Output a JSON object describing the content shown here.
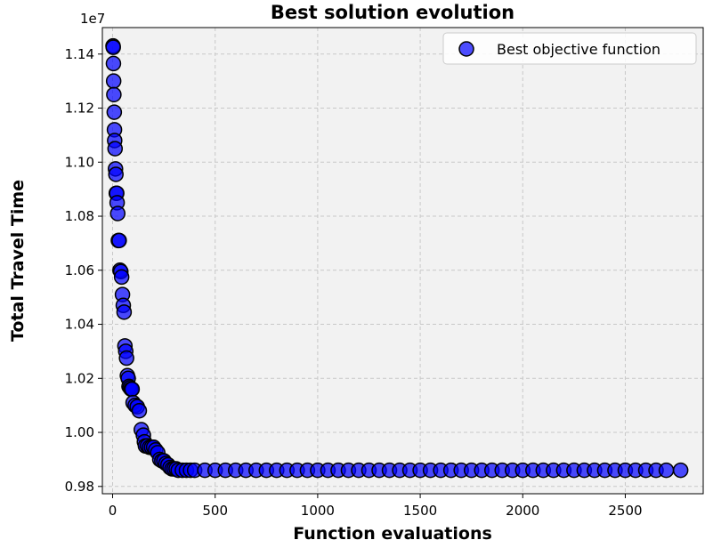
{
  "chart_data": {
    "type": "scatter",
    "title": "Best solution evolution",
    "xlabel": "Function evaluations",
    "ylabel": "Total Travel Time",
    "y_offset_label": "1e7",
    "y_scale_factor": 10000000,
    "xlim": [
      -50,
      2880
    ],
    "ylim": [
      0.9773,
      1.1498
    ],
    "xticks": [
      0,
      500,
      1000,
      1500,
      2000,
      2500
    ],
    "yticks": [
      0.98,
      1.0,
      1.02,
      1.04,
      1.06,
      1.08,
      1.1,
      1.12,
      1.14
    ],
    "ytick_labels": [
      "0.98",
      "1.00",
      "1.02",
      "1.04",
      "1.06",
      "1.08",
      "1.10",
      "1.12",
      "1.14"
    ],
    "grid": true,
    "grid_style": "dashed",
    "legend_position": "top-right",
    "marker_color": "#0000ff",
    "marker_edge_color": "#000000",
    "plot_background": "#f2f2f2",
    "series": [
      {
        "name": "Best objective function",
        "x": [
          2,
          3,
          4,
          5,
          6,
          8,
          9,
          10,
          12,
          14,
          16,
          18,
          20,
          22,
          25,
          28,
          32,
          36,
          40,
          44,
          48,
          52,
          56,
          60,
          64,
          68,
          72,
          76,
          80,
          85,
          90,
          95,
          100,
          110,
          120,
          130,
          140,
          150,
          155,
          160,
          170,
          180,
          190,
          200,
          210,
          220,
          230,
          240,
          250,
          260,
          270,
          280,
          290,
          300,
          310,
          320,
          340,
          360,
          380,
          400,
          450,
          500,
          550,
          600,
          650,
          700,
          750,
          800,
          850,
          900,
          950,
          1000,
          1050,
          1100,
          1150,
          1200,
          1250,
          1300,
          1350,
          1400,
          1450,
          1500,
          1550,
          1600,
          1650,
          1700,
          1750,
          1800,
          1850,
          1900,
          1950,
          2000,
          2050,
          2100,
          2150,
          2200,
          2250,
          2300,
          2350,
          2400,
          2450,
          2500,
          2550,
          2600,
          2650,
          2700,
          2770
        ],
        "y": [
          1.143,
          1.1425,
          1.1365,
          1.13,
          1.125,
          1.1185,
          1.112,
          1.108,
          1.105,
          1.0975,
          1.0955,
          1.0885,
          1.0885,
          1.085,
          1.081,
          1.071,
          1.071,
          1.06,
          1.0595,
          1.0575,
          1.051,
          1.047,
          1.0445,
          1.032,
          1.03,
          1.0275,
          1.021,
          1.02,
          1.017,
          1.0165,
          1.016,
          1.016,
          1.011,
          1.01,
          1.0095,
          1.008,
          1.001,
          0.999,
          0.9965,
          0.995,
          0.995,
          0.9945,
          0.9945,
          0.9945,
          0.9935,
          0.9925,
          0.99,
          0.9895,
          0.9895,
          0.9885,
          0.988,
          0.987,
          0.9865,
          0.9865,
          0.9865,
          0.986,
          0.986,
          0.986,
          0.986,
          0.986,
          0.986,
          0.986,
          0.986,
          0.986,
          0.986,
          0.986,
          0.986,
          0.986,
          0.986,
          0.986,
          0.986,
          0.986,
          0.986,
          0.986,
          0.986,
          0.986,
          0.986,
          0.986,
          0.986,
          0.986,
          0.986,
          0.986,
          0.986,
          0.986,
          0.986,
          0.986,
          0.986,
          0.986,
          0.986,
          0.986,
          0.986,
          0.986,
          0.986,
          0.986,
          0.986,
          0.986,
          0.986,
          0.986,
          0.986,
          0.986,
          0.986,
          0.986,
          0.986,
          0.986,
          0.986,
          0.986,
          0.986
        ]
      }
    ]
  }
}
